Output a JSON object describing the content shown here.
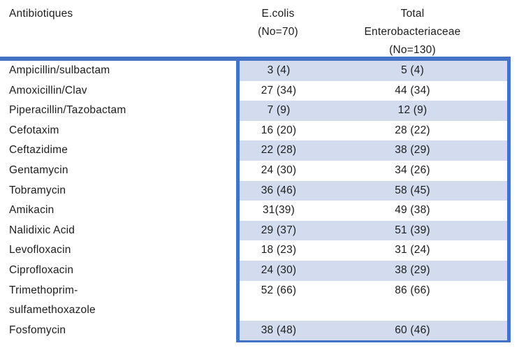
{
  "colors": {
    "accent_blue": "#4472C4",
    "row_shade_blue": "#D2DCEE",
    "text": "#1c1c1c"
  },
  "table": {
    "header": {
      "col1": "Antibiotiques",
      "col2_line1": "E.colis",
      "col2_line2": "(No=70)",
      "col3_line1": "Total",
      "col3_line2": "Enterobacteriaceae",
      "col3_line3": "(No=130)"
    },
    "rows": [
      {
        "name_lines": [
          "Ampicillin/sulbactam"
        ],
        "ecoli": "3 (4)",
        "total": "5 (4)",
        "shaded": true,
        "tall": false
      },
      {
        "name_lines": [
          "Amoxicillin/Clav"
        ],
        "ecoli": "27 (34)",
        "total": "44 (34)",
        "shaded": false,
        "tall": false
      },
      {
        "name_lines": [
          "Piperacillin/Tazobactam"
        ],
        "ecoli": "7 (9)",
        "total": "12 (9)",
        "shaded": true,
        "tall": false
      },
      {
        "name_lines": [
          "Cefotaxim"
        ],
        "ecoli": "16 (20)",
        "total": "28 (22)",
        "shaded": false,
        "tall": false
      },
      {
        "name_lines": [
          "Ceftazidime"
        ],
        "ecoli": "22 (28)",
        "total": "38 (29)",
        "shaded": true,
        "tall": false
      },
      {
        "name_lines": [
          "Gentamycin"
        ],
        "ecoli": "24 (30)",
        "total": "34 (26)",
        "shaded": false,
        "tall": false
      },
      {
        "name_lines": [
          "Tobramycin"
        ],
        "ecoli": "36 (46)",
        "total": "58 (45)",
        "shaded": true,
        "tall": false
      },
      {
        "name_lines": [
          "Amikacin"
        ],
        "ecoli": "31(39)",
        "total": "49 (38)",
        "shaded": false,
        "tall": false
      },
      {
        "name_lines": [
          "Nalidixic Acid"
        ],
        "ecoli": "29 (37)",
        "total": "51 (39)",
        "shaded": true,
        "tall": false
      },
      {
        "name_lines": [
          "Levofloxacin"
        ],
        "ecoli": "18 (23)",
        "total": "31 (24)",
        "shaded": false,
        "tall": false
      },
      {
        "name_lines": [
          "Ciprofloxacin"
        ],
        "ecoli": "24 (30)",
        "total": "38 (29)",
        "shaded": true,
        "tall": false
      },
      {
        "name_lines": [
          "Trimethoprim-",
          "sulfamethoxazole"
        ],
        "ecoli": "52 (66)",
        "total": "86 (66)",
        "shaded": false,
        "tall": true
      },
      {
        "name_lines": [
          "Fosfomycin"
        ],
        "ecoli": "38 (48)",
        "total": "60 (46)",
        "shaded": true,
        "tall": false
      }
    ]
  }
}
